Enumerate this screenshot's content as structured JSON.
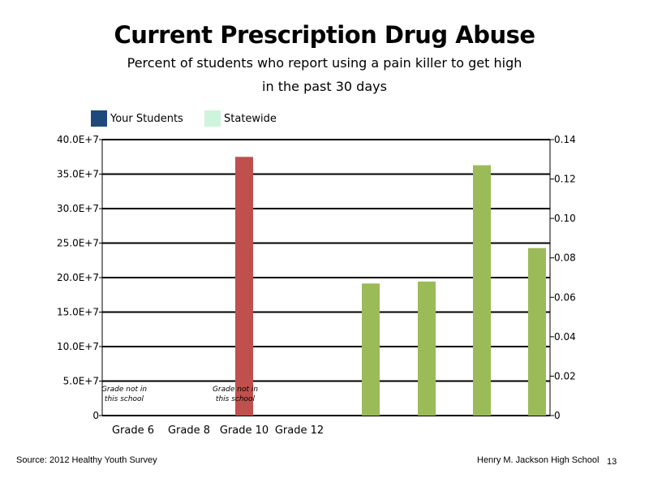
{
  "chart_data": {
    "type": "bar",
    "title": "Current Prescription Drug Abuse",
    "subtitle_line1": "Percent of students who report using a pain killer to get high",
    "subtitle_line2": "in the past 30 days",
    "categories": [
      "Grade 6",
      "Grade 8",
      "Grade 10",
      "Grade 12"
    ],
    "legend": [
      "Your Students",
      "Statewide"
    ],
    "legend_colors": [
      "#1f497d",
      "#ccf5dc"
    ],
    "left_axis": {
      "ticks": [
        "0",
        "5.0E+7",
        "10.0E+7",
        "15.0E+7",
        "20.0E+7",
        "25.0E+7",
        "30.0E+7",
        "35.0E+7",
        "40.0E+7"
      ],
      "ylim": [
        0,
        400000000
      ]
    },
    "right_axis": {
      "ticks": [
        "0",
        "0.02",
        "0.04",
        "0.06",
        "0.08",
        "0.10",
        "0.12",
        "0.14"
      ],
      "ylim": [
        0,
        0.14
      ]
    },
    "red_bars": [
      {
        "category": "Grade 10",
        "value": 375000000,
        "color": "#c0504d"
      }
    ],
    "green_bars": [
      {
        "value": 0.067,
        "color": "#9bbb59"
      },
      {
        "value": 0.068,
        "color": "#9bbb59"
      },
      {
        "value": 0.127,
        "color": "#9bbb59"
      },
      {
        "value": 0.085,
        "color": "#9bbb59"
      }
    ],
    "annotations": [
      {
        "category": "Grade 6",
        "line1": "Grade not in",
        "line2": "this school"
      },
      {
        "category": "Grade 10",
        "line1": "Grade not in",
        "line2": "this school"
      }
    ],
    "grid": true
  },
  "footer": {
    "source": "Source: 2012 Healthy Youth Survey",
    "school": "Henry M. Jackson High School",
    "page": "13"
  }
}
